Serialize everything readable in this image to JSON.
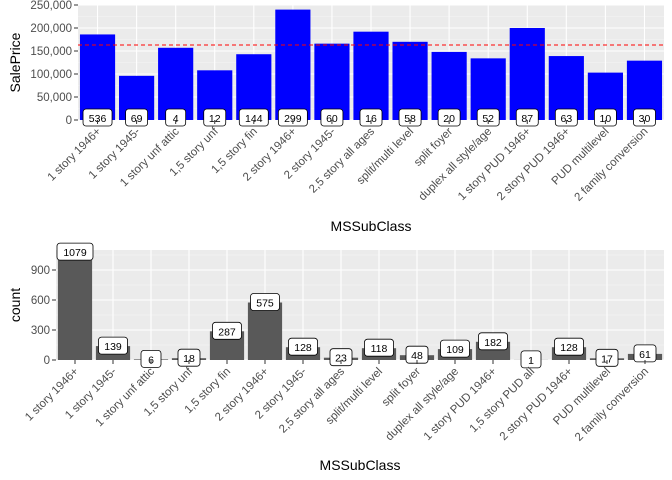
{
  "chart_data": [
    {
      "type": "bar",
      "xlabel": "MSSubClass",
      "ylabel": "SalePrice",
      "ylim": [
        0,
        250000
      ],
      "yticks": [
        0,
        50000,
        100000,
        150000,
        200000,
        250000
      ],
      "ytick_labels": [
        "0",
        "50,000",
        "100,000",
        "150,000",
        "200,000",
        "250,000"
      ],
      "grid": true,
      "bar_color": "#0000FF",
      "reference_line": {
        "value": 163000,
        "color": "#FF0000",
        "style": "dashed"
      },
      "categories": [
        "1 story 1946+",
        "1 story 1945-",
        "1 story unf attic",
        "1,5 story unf",
        "1,5 story fin",
        "2 story 1946+",
        "2 story 1945-",
        "2,5 story all ages",
        "split/multi level",
        "split foyer",
        "duplex all style/age",
        "1 story PUD 1946+",
        "2 story PUD 1946+",
        "PUD multilevel",
        "2 family conversion"
      ],
      "values": [
        186000,
        96000,
        157000,
        108000,
        143000,
        240000,
        166000,
        192000,
        170000,
        148000,
        134000,
        200000,
        139000,
        103000,
        129000
      ],
      "data_labels": [
        "536",
        "69",
        "4",
        "12",
        "144",
        "299",
        "60",
        "16",
        "58",
        "20",
        "52",
        "87",
        "63",
        "10",
        "30"
      ]
    },
    {
      "type": "bar",
      "xlabel": "MSSubClass",
      "ylabel": "count",
      "ylim": [
        0,
        1100
      ],
      "yticks": [
        0,
        300,
        600,
        900
      ],
      "ytick_labels": [
        "0",
        "300",
        "600",
        "900"
      ],
      "grid": true,
      "bar_color": "#595959",
      "categories": [
        "1 story 1946+",
        "1 story 1945-",
        "1 story unf attic",
        "1,5 story unf",
        "1,5 story fin",
        "2 story 1946+",
        "2 story 1945-",
        "2,5 story all ages",
        "split/multi level",
        "split foyer",
        "duplex all style/age",
        "1 story PUD 1946+",
        "1,5 story PUD all",
        "2 story PUD 1946+",
        "PUD multilevel",
        "2 family conversion"
      ],
      "values": [
        1079,
        139,
        6,
        18,
        287,
        575,
        128,
        23,
        118,
        48,
        109,
        182,
        1,
        128,
        17,
        61
      ],
      "data_labels": [
        "1079",
        "139",
        "6",
        "18",
        "287",
        "575",
        "128",
        "23",
        "118",
        "48",
        "109",
        "182",
        "1",
        "128",
        "17",
        "61"
      ]
    }
  ]
}
